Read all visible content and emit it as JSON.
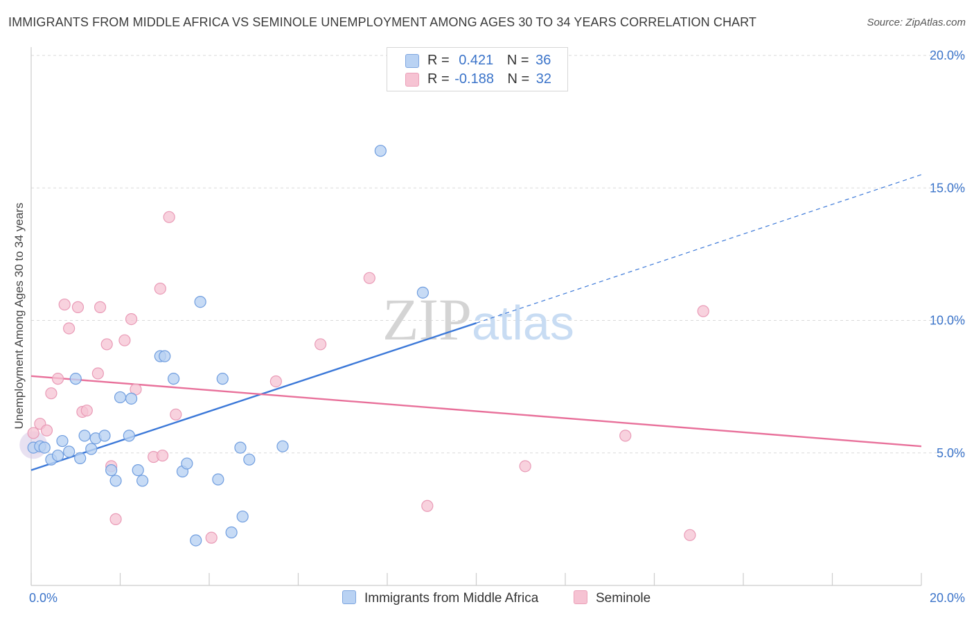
{
  "title": "IMMIGRANTS FROM MIDDLE AFRICA VS SEMINOLE UNEMPLOYMENT AMONG AGES 30 TO 34 YEARS CORRELATION CHART",
  "source": "Source: ZipAtlas.com",
  "watermark": "ZIPatlas",
  "colors": {
    "blue": "#3b78d8",
    "blue_fill": "#b9d2f3",
    "pink": "#e8709a",
    "pink_fill": "#f6c3d3",
    "tick_text": "#3a73c9"
  },
  "legend": {
    "rows": [
      {
        "r_label": "R =",
        "r_value": "0.421",
        "n_label": "N =",
        "n_value": "36"
      },
      {
        "r_label": "R =",
        "r_value": "-0.188",
        "n_label": "N =",
        "n_value": "32"
      }
    ]
  },
  "bottom_legend": [
    "Immigrants from Middle Africa",
    "Seminole"
  ],
  "chart_data": {
    "type": "scatter",
    "title": "IMMIGRANTS FROM MIDDLE AFRICA VS SEMINOLE UNEMPLOYMENT AMONG AGES 30 TO 34 YEARS CORRELATION CHART",
    "xlabel": "",
    "ylabel": "Unemployment Among Ages 30 to 34 years",
    "xlim": [
      0,
      20
    ],
    "ylim": [
      0,
      20
    ],
    "x_tick_labels": [
      "0.0%",
      "20.0%"
    ],
    "y_ticks": [
      5,
      10,
      15,
      20
    ],
    "y_tick_labels": [
      "5.0%",
      "10.0%",
      "15.0%",
      "20.0%"
    ],
    "grid": true,
    "legend_position": "top-center",
    "series": [
      {
        "name": "Immigrants from Middle Africa",
        "r": 0.421,
        "n": 36,
        "points": [
          [
            0.05,
            5.2
          ],
          [
            0.2,
            5.25
          ],
          [
            0.3,
            5.2
          ],
          [
            0.45,
            4.75
          ],
          [
            0.6,
            4.9
          ],
          [
            0.7,
            5.45
          ],
          [
            0.85,
            5.05
          ],
          [
            1.0,
            7.8
          ],
          [
            1.1,
            4.8
          ],
          [
            1.2,
            5.65
          ],
          [
            1.35,
            5.15
          ],
          [
            1.45,
            5.55
          ],
          [
            1.65,
            5.65
          ],
          [
            1.8,
            4.35
          ],
          [
            1.9,
            3.95
          ],
          [
            2.0,
            7.1
          ],
          [
            2.2,
            5.65
          ],
          [
            2.25,
            7.05
          ],
          [
            2.4,
            4.35
          ],
          [
            2.5,
            3.95
          ],
          [
            2.9,
            8.65
          ],
          [
            3.0,
            8.65
          ],
          [
            3.2,
            7.8
          ],
          [
            3.4,
            4.3
          ],
          [
            3.5,
            4.6
          ],
          [
            3.7,
            1.7
          ],
          [
            3.8,
            10.7
          ],
          [
            4.2,
            4.0
          ],
          [
            4.3,
            7.8
          ],
          [
            4.5,
            2.0
          ],
          [
            4.75,
            2.6
          ],
          [
            4.7,
            5.2
          ],
          [
            4.9,
            4.75
          ],
          [
            5.65,
            5.25
          ],
          [
            7.85,
            16.4
          ],
          [
            8.8,
            11.05
          ]
        ],
        "trend": {
          "x0": 0,
          "y0": 4.35,
          "x1": 10.0,
          "y1": 9.9,
          "dash_to_x": 20,
          "dash_to_y": 15.5
        }
      },
      {
        "name": "Seminole",
        "r": -0.188,
        "n": 32,
        "points": [
          [
            0.05,
            5.75
          ],
          [
            0.2,
            6.1
          ],
          [
            0.35,
            5.85
          ],
          [
            0.45,
            7.25
          ],
          [
            0.6,
            7.8
          ],
          [
            0.75,
            10.6
          ],
          [
            0.85,
            9.7
          ],
          [
            1.05,
            10.5
          ],
          [
            1.15,
            6.55
          ],
          [
            1.25,
            6.6
          ],
          [
            1.5,
            8.0
          ],
          [
            1.55,
            10.5
          ],
          [
            1.7,
            9.1
          ],
          [
            1.8,
            4.5
          ],
          [
            1.9,
            2.5
          ],
          [
            2.1,
            9.25
          ],
          [
            2.25,
            10.05
          ],
          [
            2.35,
            7.4
          ],
          [
            2.75,
            4.85
          ],
          [
            2.9,
            11.2
          ],
          [
            2.95,
            4.9
          ],
          [
            3.1,
            13.9
          ],
          [
            3.25,
            6.45
          ],
          [
            4.05,
            1.8
          ],
          [
            5.5,
            7.7
          ],
          [
            6.5,
            9.1
          ],
          [
            7.6,
            11.6
          ],
          [
            8.9,
            3.0
          ],
          [
            11.1,
            4.5
          ],
          [
            13.35,
            5.65
          ],
          [
            14.8,
            1.9
          ],
          [
            15.1,
            10.35
          ]
        ],
        "trend": {
          "x0": 0,
          "y0": 7.9,
          "x1": 20,
          "y1": 5.25
        }
      }
    ]
  }
}
